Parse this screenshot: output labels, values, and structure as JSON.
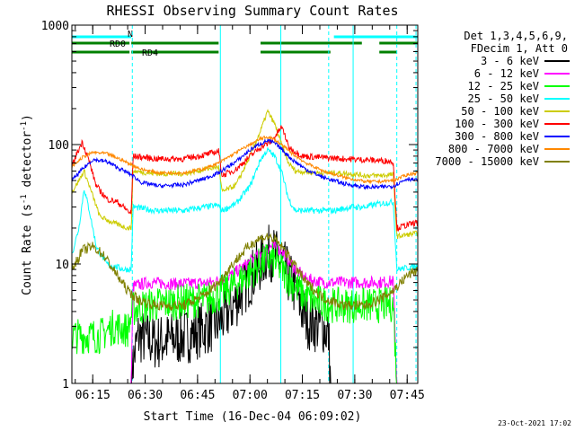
{
  "chart_data": {
    "type": "line",
    "title": "RHESSI Observing Summary Count Rates",
    "xlabel": "Start Time (16-Dec-04 06:09:02)",
    "ylabel": "Count Rate (s⁻¹ detector⁻¹)",
    "ylabel_main": "Count Rate (s",
    "ylabel_sup1": "-1",
    "ylabel_mid": " detector",
    "ylabel_sup2": "-1",
    "ylabel_end": ")",
    "x_unit": "minutes since 06:09:02",
    "xlim": [
      0,
      99
    ],
    "ylim": [
      1,
      1000
    ],
    "y_scale": "log",
    "x_ticks": [
      {
        "value": 5.97,
        "label": "06:15"
      },
      {
        "value": 20.97,
        "label": "06:30"
      },
      {
        "value": 35.97,
        "label": "06:45"
      },
      {
        "value": 50.97,
        "label": "07:00"
      },
      {
        "value": 65.97,
        "label": "07:15"
      },
      {
        "value": 80.97,
        "label": "07:30"
      },
      {
        "value": 95.97,
        "label": "07:45"
      }
    ],
    "y_ticks": [
      {
        "value": 1,
        "label": "1"
      },
      {
        "value": 10,
        "label": "10"
      },
      {
        "value": 100,
        "label": "100"
      },
      {
        "value": 1000,
        "label": "1000"
      }
    ],
    "legend_header": [
      "Det 1,3,4,5,6,9,",
      "FDecim 1, Att 0"
    ],
    "legend_position": "right",
    "footer_date": "23-Oct-2021 17:02",
    "flags": [
      {
        "label": "N",
        "color": "#00ffff",
        "segments": [
          [
            0,
            17
          ],
          [
            75,
            99
          ]
        ]
      },
      {
        "label": "RD0",
        "color": "#008000",
        "segments": [
          [
            0,
            16.5
          ],
          [
            17,
            42
          ],
          [
            54,
            83
          ],
          [
            88,
            99
          ]
        ]
      },
      {
        "label": "RD4",
        "color": "#008000",
        "segments": [
          [
            0,
            16.5
          ],
          [
            17,
            42
          ],
          [
            54,
            74
          ],
          [
            88,
            93
          ]
        ]
      }
    ],
    "vlines_solid": [
      0,
      42.5,
      59.8,
      80.5
    ],
    "vlines_dashed": [
      17.3,
      73.5,
      93.0,
      98.5
    ],
    "series": [
      {
        "name": "3 - 6 keV",
        "color": "#000000",
        "points": [
          [
            0,
            1.0
          ],
          [
            17,
            1.0
          ],
          [
            17.5,
            1.5
          ],
          [
            19,
            2.5
          ],
          [
            24,
            2.2
          ],
          [
            33,
            2.5
          ],
          [
            39,
            3.0
          ],
          [
            42,
            3.2
          ],
          [
            45,
            4
          ],
          [
            48,
            5.5
          ],
          [
            51,
            7.5
          ],
          [
            54,
            10
          ],
          [
            56,
            12.5
          ],
          [
            58,
            12
          ],
          [
            61,
            9
          ],
          [
            64,
            6
          ],
          [
            66,
            4
          ],
          [
            68,
            3.2
          ],
          [
            72,
            3
          ],
          [
            73.5,
            2.5
          ],
          [
            74,
            1.0
          ],
          [
            99,
            1.0
          ]
        ]
      },
      {
        "name": "6 - 12 keV",
        "color": "#ff00ff",
        "points": [
          [
            0,
            1.0
          ],
          [
            17,
            1.0
          ],
          [
            17.5,
            6.5
          ],
          [
            22,
            7
          ],
          [
            30,
            6.8
          ],
          [
            40,
            7
          ],
          [
            44,
            7.5
          ],
          [
            48,
            9
          ],
          [
            52,
            11
          ],
          [
            55,
            13
          ],
          [
            57,
            14
          ],
          [
            59,
            13.5
          ],
          [
            61,
            12
          ],
          [
            64,
            9
          ],
          [
            67,
            7.5
          ],
          [
            72,
            7
          ],
          [
            78,
            7
          ],
          [
            83,
            7
          ],
          [
            88,
            7
          ],
          [
            92,
            7.2
          ],
          [
            93,
            1.0
          ],
          [
            99,
            1.0
          ]
        ]
      },
      {
        "name": "12 - 25 keV",
        "color": "#00ff00",
        "points": [
          [
            0,
            2.5
          ],
          [
            4,
            2.5
          ],
          [
            8,
            2.5
          ],
          [
            12,
            3
          ],
          [
            16,
            2.8
          ],
          [
            17.5,
            4.2
          ],
          [
            22,
            4.5
          ],
          [
            30,
            4.8
          ],
          [
            38,
            5
          ],
          [
            42,
            5.5
          ],
          [
            46,
            6.5
          ],
          [
            50,
            8
          ],
          [
            54,
            10
          ],
          [
            56,
            11
          ],
          [
            58,
            10.5
          ],
          [
            60,
            9
          ],
          [
            63,
            7
          ],
          [
            66,
            5.5
          ],
          [
            70,
            4.8
          ],
          [
            75,
            4.5
          ],
          [
            82,
            4.5
          ],
          [
            88,
            4.5
          ],
          [
            92,
            4.6
          ],
          [
            93,
            1.0
          ],
          [
            99,
            1.0
          ]
        ]
      },
      {
        "name": "25 - 50 keV",
        "color": "#00ffff",
        "points": [
          [
            0,
            12
          ],
          [
            2,
            20
          ],
          [
            3.5,
            43
          ],
          [
            5,
            28
          ],
          [
            7,
            14
          ],
          [
            10,
            10
          ],
          [
            15,
            9
          ],
          [
            17,
            9
          ],
          [
            17.5,
            30
          ],
          [
            24,
            28
          ],
          [
            32,
            28
          ],
          [
            38,
            30
          ],
          [
            42,
            31
          ],
          [
            43,
            28
          ],
          [
            47,
            32
          ],
          [
            51,
            45
          ],
          [
            54,
            75
          ],
          [
            56,
            90
          ],
          [
            58,
            80
          ],
          [
            60,
            60
          ],
          [
            62,
            35
          ],
          [
            64,
            28
          ],
          [
            70,
            28
          ],
          [
            75,
            28
          ],
          [
            80,
            30
          ],
          [
            84,
            30
          ],
          [
            88,
            32
          ],
          [
            92,
            33
          ],
          [
            93,
            9
          ],
          [
            98,
            9.5
          ]
        ]
      },
      {
        "name": "50 - 100 keV",
        "color": "#cccc00",
        "points": [
          [
            0,
            40
          ],
          [
            2,
            50
          ],
          [
            3.5,
            60
          ],
          [
            5,
            45
          ],
          [
            8,
            25
          ],
          [
            12,
            22
          ],
          [
            16,
            20
          ],
          [
            17,
            20
          ],
          [
            17.5,
            60
          ],
          [
            24,
            57
          ],
          [
            32,
            57
          ],
          [
            38,
            62
          ],
          [
            42,
            65
          ],
          [
            43,
            40
          ],
          [
            47,
            46
          ],
          [
            51,
            80
          ],
          [
            54,
            130
          ],
          [
            56,
            190
          ],
          [
            58,
            150
          ],
          [
            60,
            100
          ],
          [
            62,
            70
          ],
          [
            64,
            60
          ],
          [
            70,
            58
          ],
          [
            75,
            58
          ],
          [
            80,
            57
          ],
          [
            84,
            55
          ],
          [
            88,
            55
          ],
          [
            92,
            56
          ],
          [
            93,
            17
          ],
          [
            98,
            18
          ]
        ]
      },
      {
        "name": "100 - 300 keV",
        "color": "#ff0000",
        "points": [
          [
            0,
            65
          ],
          [
            1.5,
            85
          ],
          [
            3,
            105
          ],
          [
            4.5,
            80
          ],
          [
            7,
            45
          ],
          [
            10,
            35
          ],
          [
            13,
            33
          ],
          [
            16,
            28
          ],
          [
            17,
            26
          ],
          [
            17.5,
            80
          ],
          [
            24,
            76
          ],
          [
            32,
            76
          ],
          [
            38,
            82
          ],
          [
            42,
            88
          ],
          [
            43,
            55
          ],
          [
            47,
            62
          ],
          [
            51,
            80
          ],
          [
            54,
            95
          ],
          [
            57,
            105
          ],
          [
            60,
            140
          ],
          [
            61,
            120
          ],
          [
            62,
            95
          ],
          [
            66,
            80
          ],
          [
            72,
            78
          ],
          [
            78,
            76
          ],
          [
            82,
            75
          ],
          [
            86,
            74
          ],
          [
            90,
            73
          ],
          [
            92,
            72
          ],
          [
            93,
            20
          ],
          [
            98,
            22
          ]
        ]
      },
      {
        "name": "300 - 800 keV",
        "color": "#0000ff",
        "points": [
          [
            0,
            50
          ],
          [
            3,
            62
          ],
          [
            6,
            75
          ],
          [
            10,
            72
          ],
          [
            14,
            62
          ],
          [
            17,
            56
          ],
          [
            20,
            48
          ],
          [
            25,
            45
          ],
          [
            32,
            46
          ],
          [
            38,
            52
          ],
          [
            42,
            58
          ],
          [
            47,
            72
          ],
          [
            51,
            90
          ],
          [
            54,
            102
          ],
          [
            56,
            108
          ],
          [
            58,
            103
          ],
          [
            60,
            92
          ],
          [
            63,
            75
          ],
          [
            67,
            62
          ],
          [
            72,
            53
          ],
          [
            78,
            47
          ],
          [
            84,
            44
          ],
          [
            88,
            44
          ],
          [
            92,
            45
          ],
          [
            96,
            52
          ],
          [
            99,
            50
          ]
        ]
      },
      {
        "name": "800 - 7000 keV",
        "color": "#ff8800",
        "points": [
          [
            0,
            65
          ],
          [
            3,
            78
          ],
          [
            6,
            86
          ],
          [
            10,
            84
          ],
          [
            14,
            75
          ],
          [
            17,
            68
          ],
          [
            20,
            62
          ],
          [
            25,
            58
          ],
          [
            32,
            58
          ],
          [
            38,
            63
          ],
          [
            42,
            70
          ],
          [
            47,
            86
          ],
          [
            51,
            100
          ],
          [
            54,
            112
          ],
          [
            56,
            116
          ],
          [
            58,
            110
          ],
          [
            60,
            100
          ],
          [
            63,
            84
          ],
          [
            67,
            70
          ],
          [
            72,
            60
          ],
          [
            78,
            53
          ],
          [
            84,
            49
          ],
          [
            88,
            49
          ],
          [
            92,
            50
          ],
          [
            96,
            56
          ],
          [
            99,
            58
          ]
        ]
      },
      {
        "name": "7000 - 15000 keV",
        "color": "#808000",
        "points": [
          [
            0,
            9
          ],
          [
            3,
            13
          ],
          [
            6,
            14
          ],
          [
            9,
            12
          ],
          [
            13,
            8
          ],
          [
            16,
            6
          ],
          [
            19,
            5
          ],
          [
            24,
            4.5
          ],
          [
            32,
            4.5
          ],
          [
            38,
            5.5
          ],
          [
            42,
            7
          ],
          [
            46,
            10
          ],
          [
            50,
            13.5
          ],
          [
            53,
            16
          ],
          [
            56,
            17
          ],
          [
            58,
            16
          ],
          [
            61,
            13
          ],
          [
            64,
            9.5
          ],
          [
            67,
            7
          ],
          [
            72,
            5.2
          ],
          [
            78,
            4.5
          ],
          [
            84,
            4.5
          ],
          [
            88,
            5
          ],
          [
            92,
            6
          ],
          [
            96,
            8
          ],
          [
            99,
            9
          ]
        ]
      }
    ]
  }
}
